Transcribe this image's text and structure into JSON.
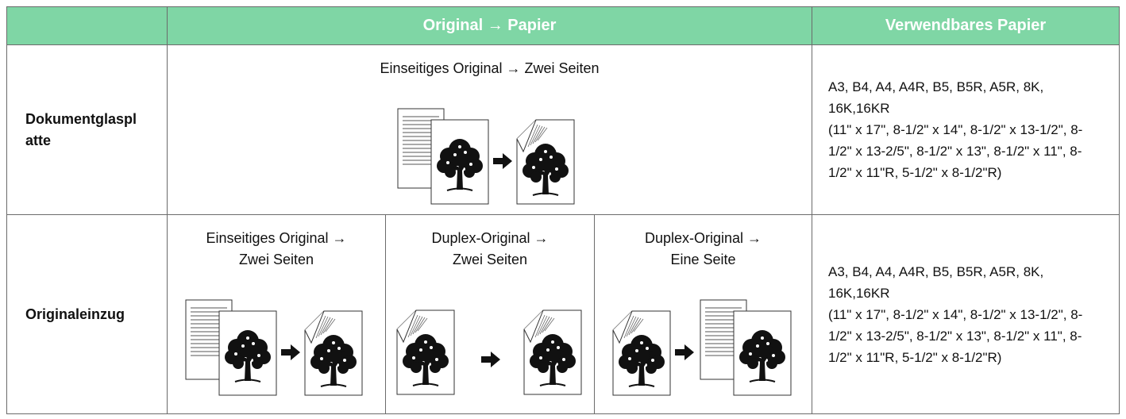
{
  "header": {
    "cells": [
      "Original → Papier",
      "Verwendbares Papier"
    ]
  },
  "rows": [
    {
      "label": "Dokumentglasplatte",
      "modes": [
        "Einseitiges Original → Zwei Seiten"
      ],
      "paper": [
        "A3, B4, A4, A4R, B5, B5R, A5R, 8K, 16K,16KR",
        "(11\" x 17\", 8-1/2\" x 14\", 8-1/2\" x 13-1/2\", 8-1/2\" x 13-2/5\", 8-1/2\" x 13\", 8-1/2\" x 11\", 8-1/2\" x 11\"R, 5-1/2\" x 8-1/2\"R)"
      ]
    },
    {
      "label": "Originaleinzug",
      "modes": [
        "Einseitiges Original → Zwei Seiten",
        "Duplex-Original → Zwei Seiten",
        "Duplex-Original → Eine Seite"
      ],
      "paper": [
        "A3, B4, A4, A4R, B5, B5R, A5R, 8K, 16K,16KR",
        "(11\" x 17\", 8-1/2\" x 14\", 8-1/2\" x 13-1/2\", 8-1/2\" x 13-2/5\", 8-1/2\" x 13\", 8-1/2\" x 11\", 8-1/2\" x 11\"R, 5-1/2\" x 8-1/2\"R)"
      ]
    }
  ]
}
